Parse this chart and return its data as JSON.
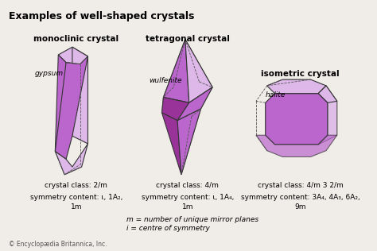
{
  "title": "Examples of well-shaped crystals",
  "crystal_names": [
    "monoclinic crystal",
    "tetragonal crystal",
    "isometric crystal"
  ],
  "mineral_names": [
    "gypsum",
    "wulfenite",
    "halite"
  ],
  "crystal_classes": [
    "crystal class: 2/m",
    "crystal class: 4/m",
    "crystal class: 4/m 3 2/m"
  ],
  "symmetry_lines": [
    [
      "symmetry content: ι, 1A₂,",
      "1m"
    ],
    [
      "symmetry content: ι, 1A₄,",
      "1m"
    ],
    [
      "symmetry content: 3A₄, 4A₃, 6A₂,",
      "9m"
    ]
  ],
  "footnote1": "m = number of unique mirror planes",
  "footnote2": "i = centre of symmetry",
  "copyright": "© Encyclopædia Britannica, Inc.",
  "bg_color": "#f0ece8",
  "face_color_light": "#ddb8e8",
  "face_color_mid": "#bb66cc",
  "face_color_dark": "#993399",
  "edge_color": "#333333",
  "dashed_color": "#555555"
}
